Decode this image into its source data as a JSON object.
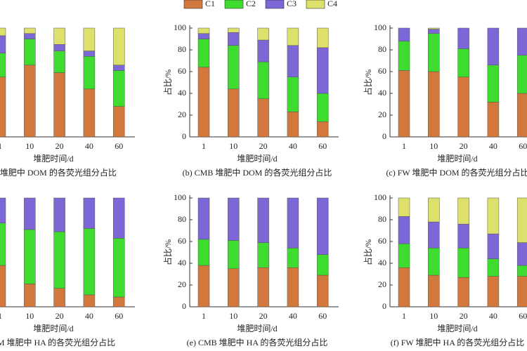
{
  "legend": [
    {
      "name": "C1",
      "color": "#d2783c"
    },
    {
      "name": "C2",
      "color": "#3ddc2e"
    },
    {
      "name": "C3",
      "color": "#7d66d6"
    },
    {
      "name": "C4",
      "color": "#dde06a"
    }
  ],
  "chart_data": [
    {
      "type": "stacked_bar",
      "caption": "M 堆肥中 DOM 的各荧光组分占比",
      "x_label": "堆肥时间/d",
      "categories": [
        "1",
        "10",
        "20",
        "40",
        "60"
      ],
      "ylim": [
        0,
        100
      ],
      "series": [
        {
          "values": [
            55,
            66,
            59,
            44,
            28
          ]
        },
        {
          "values": [
            22,
            24,
            20,
            30,
            33
          ]
        },
        {
          "values": [
            16,
            5,
            6,
            5,
            5
          ]
        },
        {
          "values": [
            7,
            5,
            15,
            21,
            34
          ]
        }
      ]
    },
    {
      "type": "stacked_bar",
      "caption": "(b) CMB 堆肥中 DOM 的各荧光组分占比",
      "x_label": "堆肥时间/d",
      "y_label": "占比/%",
      "categories": [
        "1",
        "10",
        "20",
        "40",
        "60"
      ],
      "ylim": [
        0,
        100
      ],
      "yticks": [
        0,
        20,
        40,
        60,
        80,
        100
      ],
      "series": [
        {
          "values": [
            64,
            44,
            35,
            23,
            14
          ]
        },
        {
          "values": [
            26,
            40,
            34,
            32,
            26
          ]
        },
        {
          "values": [
            5,
            12,
            20,
            29,
            42
          ]
        },
        {
          "values": [
            5,
            4,
            11,
            16,
            18
          ]
        }
      ]
    },
    {
      "type": "stacked_bar",
      "caption": "(c) FW 堆肥中 DOM 的各荧光组分占比",
      "x_label": "堆肥时间/d",
      "y_label": "占比/%",
      "categories": [
        "1",
        "10",
        "20",
        "40",
        "60"
      ],
      "ylim": [
        0,
        100
      ],
      "yticks": [
        0,
        20,
        40,
        60,
        80,
        100
      ],
      "series": [
        {
          "values": [
            61,
            60,
            55,
            32,
            40
          ]
        },
        {
          "values": [
            27,
            35,
            26,
            34,
            35
          ]
        },
        {
          "values": [
            12,
            4,
            19,
            34,
            25
          ]
        },
        {
          "values": [
            0,
            1,
            0,
            0,
            0
          ]
        }
      ]
    },
    {
      "type": "stacked_bar",
      "caption": "CM 堆肥中 HA 的各荧光组分占比",
      "x_label": "堆肥时间/d",
      "categories": [
        "1",
        "10",
        "20",
        "40",
        "60"
      ],
      "ylim": [
        0,
        100
      ],
      "series": [
        {
          "values": [
            38,
            21,
            17,
            11,
            9
          ]
        },
        {
          "values": [
            39,
            50,
            52,
            61,
            54
          ]
        },
        {
          "values": [
            23,
            29,
            31,
            28,
            37
          ]
        },
        {
          "values": [
            0,
            0,
            0,
            0,
            0
          ]
        }
      ]
    },
    {
      "type": "stacked_bar",
      "caption": "(e) CMB 堆肥中 HA 的各荧光组分占比",
      "x_label": "堆肥时间/d",
      "y_label": "占比/%",
      "categories": [
        "1",
        "10",
        "20",
        "40",
        "60"
      ],
      "ylim": [
        0,
        100
      ],
      "yticks": [
        0,
        20,
        40,
        60,
        80,
        100
      ],
      "series": [
        {
          "values": [
            38,
            35,
            36,
            36,
            29
          ]
        },
        {
          "values": [
            24,
            26,
            23,
            18,
            19
          ]
        },
        {
          "values": [
            38,
            39,
            41,
            46,
            52
          ]
        },
        {
          "values": [
            0,
            0,
            0,
            0,
            0
          ]
        }
      ]
    },
    {
      "type": "stacked_bar",
      "caption": "(f) FW 堆肥中 HA 的各荧光组分占比",
      "x_label": "堆肥时间/d",
      "y_label": "占比/%",
      "categories": [
        "1",
        "10",
        "20",
        "40",
        "60"
      ],
      "ylim": [
        0,
        100
      ],
      "yticks": [
        0,
        20,
        40,
        60,
        80,
        100
      ],
      "series": [
        {
          "values": [
            36,
            29,
            27,
            28,
            28
          ]
        },
        {
          "values": [
            22,
            25,
            27,
            16,
            10
          ]
        },
        {
          "values": [
            25,
            24,
            22,
            23,
            21
          ]
        },
        {
          "values": [
            17,
            22,
            24,
            33,
            41
          ]
        }
      ]
    }
  ]
}
